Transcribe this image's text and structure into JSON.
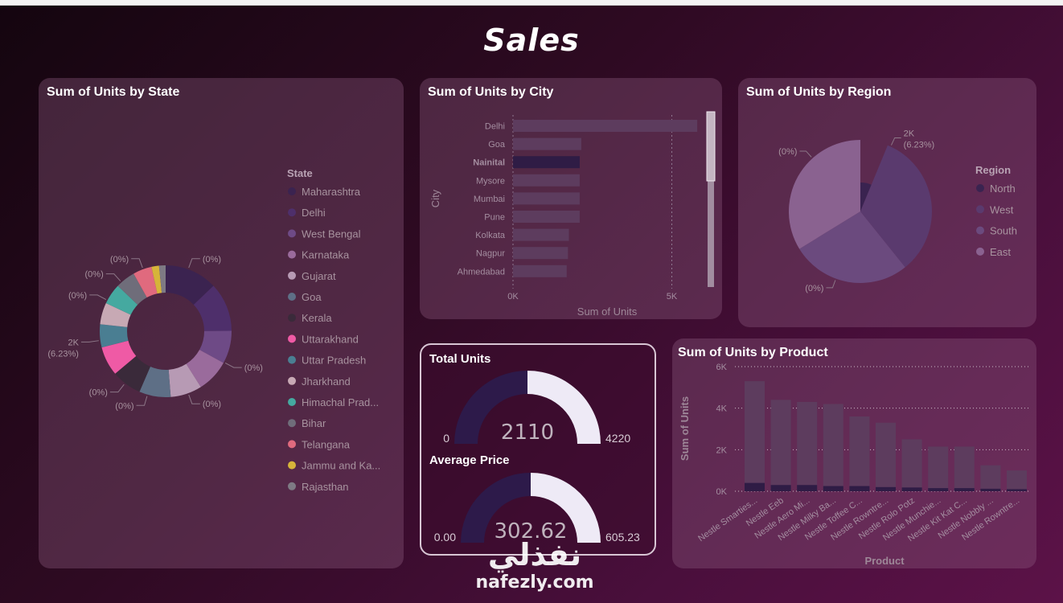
{
  "page": {
    "title": "Sales"
  },
  "colors": {
    "accent": "#2d1a4a",
    "gauge_fill": "#2d1a4a",
    "gauge_rest": "#eeeaf6"
  },
  "chart_data": [
    {
      "id": "state",
      "type": "pie",
      "title": "Sum of Units by State",
      "legend_title": "State",
      "legend_placement": "right",
      "slices": [
        {
          "label": "Maharashtra",
          "value": 11.2,
          "color": "#3b2350"
        },
        {
          "label": "Delhi",
          "value": 10.4,
          "color": "#4e2f6b"
        },
        {
          "label": "West Bengal",
          "value": 7.0,
          "color": "#6e4a86"
        },
        {
          "label": "Karnataka",
          "value": 7.0,
          "color": "#9a6b9c"
        },
        {
          "label": "Gujarat",
          "value": 6.7,
          "color": "#b79ab4"
        },
        {
          "label": "Goa",
          "value": 6.7,
          "color": "#5e6f86"
        },
        {
          "label": "Kerala",
          "value": 6.4,
          "color": "#3a2a3a"
        },
        {
          "label": "Uttarakhand",
          "value": 6.23,
          "color": "#ef5aa5"
        },
        {
          "label": "Uttar Pradesh",
          "value": 4.9,
          "color": "#4a7e92"
        },
        {
          "label": "Jharkhand",
          "value": 4.6,
          "color": "#c7a9b4"
        },
        {
          "label": "Himachal Prad...",
          "value": 4.4,
          "color": "#45a9a0"
        },
        {
          "label": "Bihar",
          "value": 4.2,
          "color": "#6f6d7a"
        },
        {
          "label": "Telangana",
          "value": 4.0,
          "color": "#e06a7e"
        },
        {
          "label": "Jammu and Ka...",
          "value": 1.6,
          "color": "#d6b43a"
        },
        {
          "label": "Rajasthan",
          "value": 1.4,
          "color": "#7e7a84"
        }
      ],
      "labels": [
        {
          "text": "(0%)",
          "angle": 20
        },
        {
          "text": "(0%)",
          "angle": 118
        },
        {
          "text": "(0%)",
          "angle": 160
        },
        {
          "text": "(0%)",
          "angle": 196
        },
        {
          "text": "(0%)",
          "angle": 218
        },
        {
          "text": "2K",
          "text2": "(6.23%)",
          "angle": 262
        },
        {
          "text": "(0%)",
          "angle": 298
        },
        {
          "text": "(0%)",
          "angle": 318
        },
        {
          "text": "(0%)",
          "angle": 340
        }
      ]
    },
    {
      "id": "city",
      "type": "bar",
      "orientation": "horizontal",
      "title": "Sum of Units by City",
      "xlabel": "Sum of Units",
      "ylabel": "City",
      "xlim": [
        0,
        6000
      ],
      "xticks": [
        {
          "value": 0,
          "label": "0K"
        },
        {
          "value": 5000,
          "label": "5K"
        }
      ],
      "categories": [
        "Delhi",
        "Goa",
        "Nainital",
        "Mysore",
        "Mumbai",
        "Pune",
        "Kolkata",
        "Nagpur",
        "Ahmedabad"
      ],
      "values": [
        5800,
        2150,
        2100,
        2100,
        2100,
        2100,
        1760,
        1730,
        1690
      ],
      "highlight": "Nainital"
    },
    {
      "id": "region",
      "type": "pie",
      "title": "Sum of Units by Region",
      "legend_title": "Region",
      "legend_placement": "right",
      "slices": [
        {
          "label": "North",
          "value": 6.23,
          "color": "#3a2350"
        },
        {
          "label": "West",
          "value": 33,
          "color": "#5a3a6e"
        },
        {
          "label": "South",
          "value": 27,
          "color": "#6b4a7e"
        },
        {
          "label": "East",
          "value": 33.77,
          "color": "#8a6290"
        }
      ],
      "labels": [
        {
          "text": "2K",
          "text2": "(6.23%)",
          "angle": 25
        },
        {
          "text": "(0%)",
          "angle": 200
        },
        {
          "text": "(0%)",
          "angle": 318
        }
      ]
    },
    {
      "id": "total_units",
      "type": "gauge",
      "title": "Total Units",
      "value": 2110,
      "min": 0,
      "max": 4220,
      "value_label": "2110",
      "min_label": "0",
      "max_label": "4220"
    },
    {
      "id": "average_price",
      "type": "gauge",
      "title": "Average Price",
      "value": 302.62,
      "min": 0,
      "max": 605.23,
      "value_label": "302.62",
      "min_label": "0.00",
      "max_label": "605.23"
    },
    {
      "id": "product",
      "type": "bar",
      "orientation": "vertical",
      "title": "Sum of Units by Product",
      "xlabel": "Product",
      "ylabel": "Sum of Units",
      "ylim": [
        0,
        6000
      ],
      "grid": true,
      "yticks": [
        {
          "value": 0,
          "label": "0K"
        },
        {
          "value": 2000,
          "label": "2K"
        },
        {
          "value": 4000,
          "label": "4K"
        },
        {
          "value": 6000,
          "label": "6K"
        }
      ],
      "categories": [
        "Nestle Smarties...",
        "Nestle Eeb",
        "Nestle Aero Mi...",
        "Nestle Milky Ba...",
        "Nestle Toffee C...",
        "Nestle Rowntre...",
        "Nestle Rolo Potz",
        "Nestle Munchie...",
        "Nestle Kit Kat C...",
        "Nestle Nobbly ...",
        "Nestle Rowntre..."
      ],
      "values": [
        5300,
        4400,
        4300,
        4200,
        3600,
        3300,
        2500,
        2150,
        2150,
        1250,
        1000
      ],
      "highlight_values": [
        400,
        300,
        300,
        250,
        250,
        200,
        180,
        150,
        150,
        120,
        100
      ]
    }
  ],
  "watermark": {
    "arabic": "نفذلي",
    "latin": "nafezly.com"
  }
}
